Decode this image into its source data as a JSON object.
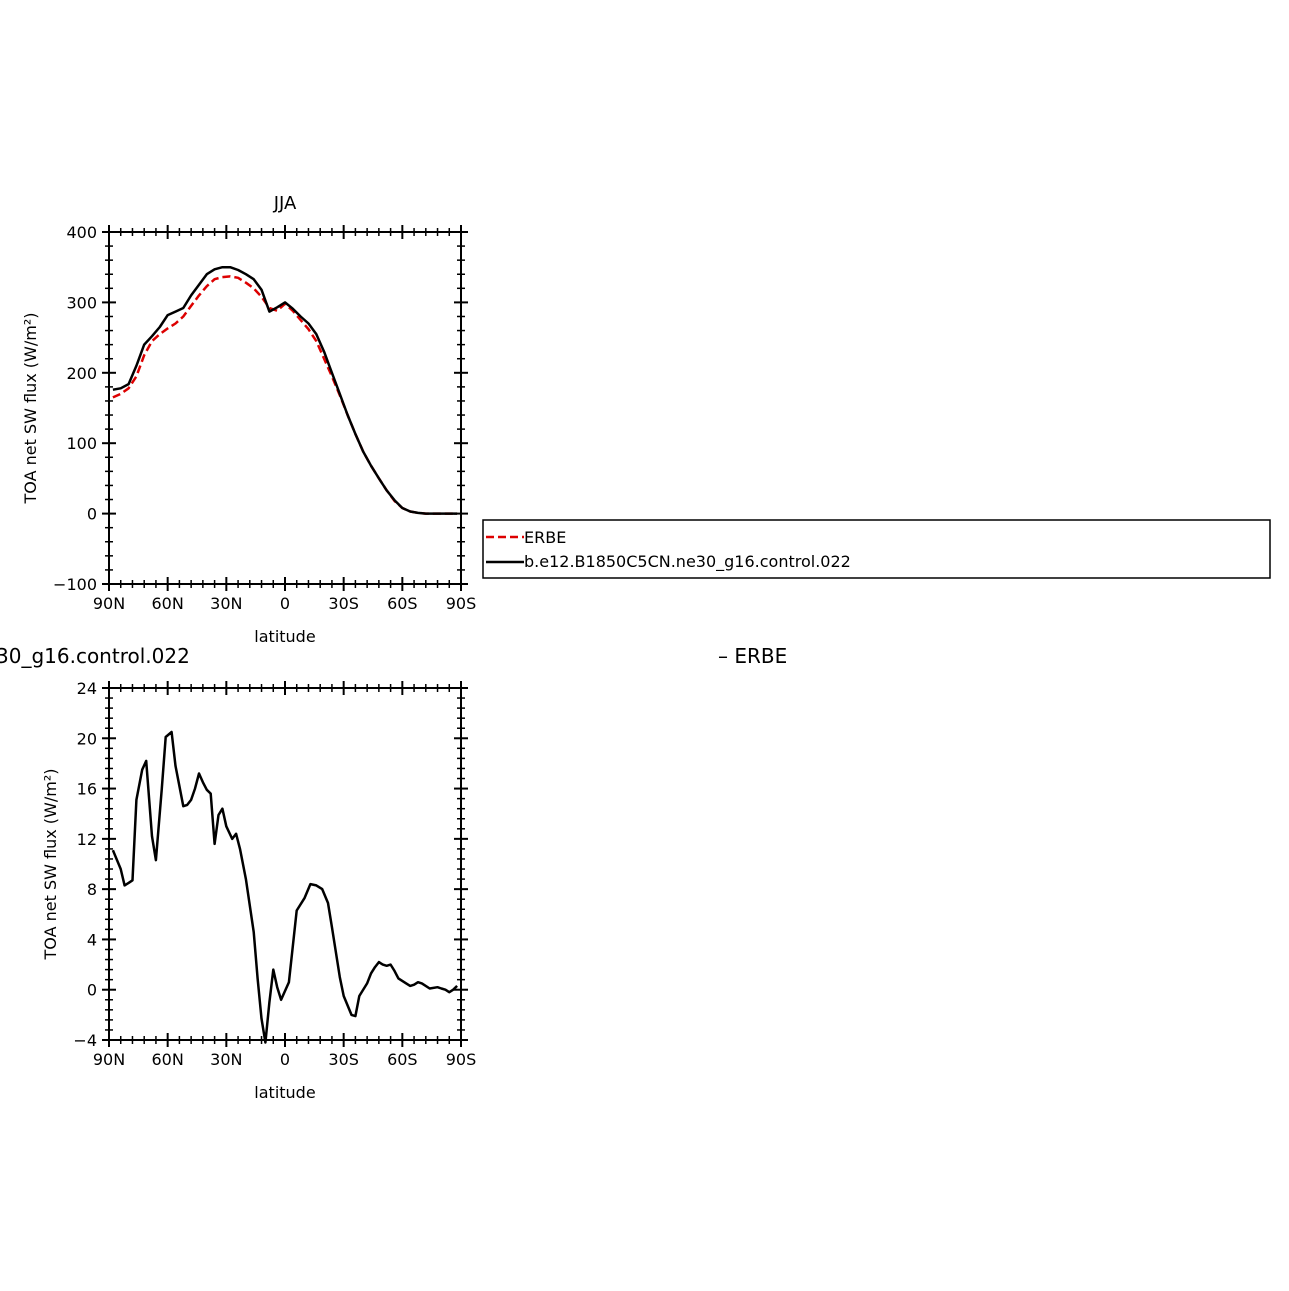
{
  "chart_data": [
    {
      "type": "line",
      "title": "JJA",
      "xlabel": "latitude",
      "ylabel": "TOA net SW flux (W/m²)",
      "xlim": [
        -90,
        90
      ],
      "ylim": [
        -100,
        400
      ],
      "x_ticks": [
        {
          "value": -90,
          "label": "90N"
        },
        {
          "value": -60,
          "label": "60N"
        },
        {
          "value": -30,
          "label": "30N"
        },
        {
          "value": 0,
          "label": "0"
        },
        {
          "value": 30,
          "label": "30S"
        },
        {
          "value": 60,
          "label": "60S"
        },
        {
          "value": 90,
          "label": "90S"
        }
      ],
      "y_ticks": [
        {
          "value": -100,
          "label": "−100"
        },
        {
          "value": 0,
          "label": "0"
        },
        {
          "value": 100,
          "label": "100"
        },
        {
          "value": 200,
          "label": "200"
        },
        {
          "value": 300,
          "label": "300"
        },
        {
          "value": 400,
          "label": "400"
        }
      ],
      "grid": false,
      "legend": {
        "placement": "right",
        "entries": [
          "ERBE",
          "b.e12.B1850C5CN.ne30_g16.control.022"
        ]
      },
      "series": [
        {
          "name": "ERBE",
          "color": "#dd0000",
          "dash": true,
          "x": [
            -88,
            -84,
            -80,
            -76,
            -72,
            -68,
            -64,
            -60,
            -56,
            -52,
            -48,
            -44,
            -40,
            -36,
            -32,
            -28,
            -24,
            -20,
            -16,
            -12,
            -8,
            -4,
            0,
            4,
            8,
            12,
            16,
            20,
            24,
            28,
            32,
            36,
            40,
            44,
            48,
            52,
            56,
            60,
            64,
            68,
            72,
            76,
            80,
            84,
            88
          ],
          "values": [
            165,
            170,
            178,
            195,
            225,
            245,
            255,
            263,
            270,
            280,
            295,
            310,
            323,
            333,
            336,
            337,
            335,
            328,
            320,
            308,
            292,
            288,
            298,
            288,
            275,
            262,
            245,
            220,
            195,
            168,
            140,
            113,
            88,
            68,
            50,
            33,
            18,
            8,
            3,
            1,
            0,
            0,
            0,
            0,
            0
          ]
        },
        {
          "name": "b.e12.B1850C5CN.ne30_g16.control.022",
          "color": "#000000",
          "dash": false,
          "x": [
            -88,
            -84,
            -80,
            -76,
            -72,
            -68,
            -64,
            -60,
            -56,
            -52,
            -48,
            -44,
            -40,
            -36,
            -32,
            -28,
            -24,
            -20,
            -16,
            -12,
            -8,
            -4,
            0,
            4,
            8,
            12,
            16,
            20,
            24,
            28,
            32,
            36,
            40,
            44,
            48,
            52,
            56,
            60,
            64,
            68,
            72,
            76,
            80,
            84,
            88
          ],
          "values": [
            176,
            178,
            184,
            210,
            240,
            252,
            265,
            282,
            287,
            292,
            310,
            325,
            340,
            347,
            350,
            350,
            346,
            340,
            333,
            318,
            287,
            293,
            300,
            291,
            280,
            270,
            255,
            230,
            200,
            170,
            140,
            113,
            88,
            68,
            50,
            33,
            19,
            8,
            3,
            1,
            0,
            0,
            0,
            0,
            0
          ]
        }
      ]
    },
    {
      "type": "line",
      "title_left": "30_g16.control.022",
      "title_right": "– ERBE",
      "xlabel": "latitude",
      "ylabel": "TOA net SW flux (W/m²)",
      "xlim": [
        -90,
        90
      ],
      "ylim": [
        -4,
        24
      ],
      "x_ticks": [
        {
          "value": -90,
          "label": "90N"
        },
        {
          "value": -60,
          "label": "60N"
        },
        {
          "value": -30,
          "label": "30N"
        },
        {
          "value": 0,
          "label": "0"
        },
        {
          "value": 30,
          "label": "30S"
        },
        {
          "value": 60,
          "label": "60S"
        },
        {
          "value": 90,
          "label": "90S"
        }
      ],
      "y_ticks": [
        {
          "value": -4,
          "label": "−4"
        },
        {
          "value": 0,
          "label": "0"
        },
        {
          "value": 4,
          "label": "4"
        },
        {
          "value": 8,
          "label": "8"
        },
        {
          "value": 12,
          "label": "12"
        },
        {
          "value": 16,
          "label": "16"
        },
        {
          "value": 20,
          "label": "20"
        },
        {
          "value": 24,
          "label": "24"
        }
      ],
      "grid": false,
      "series": [
        {
          "color": "#000000",
          "dash": false,
          "x": [
            -88,
            -84,
            -82,
            -80,
            -78,
            -76,
            -73,
            -71,
            -68,
            -66,
            -63,
            -61,
            -58,
            -56,
            -52,
            -50,
            -48,
            -46,
            -44,
            -42,
            -40,
            -38,
            -36,
            -34,
            -32,
            -30,
            -27,
            -25,
            -23,
            -20,
            -16,
            -14,
            -12,
            -10,
            -8,
            -6,
            -4,
            -2,
            2,
            6,
            10,
            13,
            16,
            19,
            22,
            24,
            28,
            30,
            34,
            36,
            38,
            42,
            44,
            46,
            48,
            50,
            52,
            54,
            56,
            58,
            60,
            62,
            64,
            66,
            68,
            70,
            74,
            78,
            80,
            82,
            84,
            86,
            88
          ],
          "values": [
            11.1,
            9.6,
            8.3,
            8.5,
            8.7,
            15.1,
            17.5,
            18.2,
            12.2,
            10.3,
            16.0,
            20.1,
            20.5,
            17.8,
            14.6,
            14.7,
            15.1,
            16.0,
            17.2,
            16.5,
            15.9,
            15.6,
            11.6,
            13.9,
            14.4,
            13.0,
            12.0,
            12.4,
            11.2,
            8.8,
            4.6,
            0.9,
            -2.3,
            -4.2,
            -1.0,
            1.6,
            0.2,
            -0.8,
            0.6,
            6.3,
            7.3,
            8.4,
            8.3,
            8.0,
            6.9,
            5.0,
            1.0,
            -0.5,
            -2.0,
            -2.1,
            -0.5,
            0.5,
            1.3,
            1.8,
            2.2,
            2.0,
            1.9,
            2.0,
            1.5,
            0.9,
            0.7,
            0.5,
            0.3,
            0.4,
            0.6,
            0.5,
            0.1,
            0.2,
            0.1,
            0.0,
            -0.2,
            0.0,
            0.3
          ]
        }
      ]
    }
  ]
}
